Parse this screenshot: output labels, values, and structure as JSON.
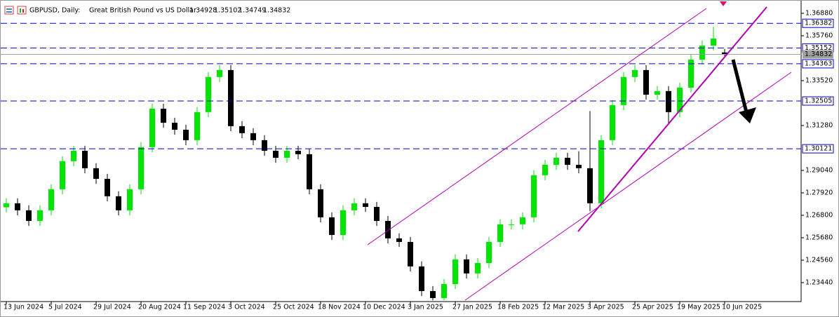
{
  "chart_data": {
    "type": "candlestick",
    "symbol": "GBPUSD, Daily:",
    "description": "Great British Pound vs US Dollar",
    "categories": [
      "13 Jun 2024",
      null,
      null,
      null,
      "5 Jul 2024",
      null,
      null,
      null,
      "29 Jul 2024",
      null,
      null,
      null,
      "20 Aug 2024",
      null,
      null,
      null,
      "11 Sep 2024",
      null,
      null,
      null,
      "3 Oct 2024",
      null,
      null,
      null,
      "25 Oct 2024",
      null,
      null,
      null,
      "18 Nov 2024",
      null,
      null,
      null,
      "10 Dec 2024",
      null,
      null,
      null,
      "3 Jan 2025",
      null,
      null,
      null,
      "27 Jan 2025",
      null,
      null,
      null,
      "18 Feb 2025",
      null,
      null,
      null,
      "12 Mar 2025",
      null,
      null,
      null,
      "3 Apr 2025",
      null,
      null,
      null,
      "25 Apr 2025",
      null,
      null,
      null,
      "19 May 2025",
      null,
      null,
      null,
      "10 Jun 2025"
    ],
    "open": [
      1.272,
      1.274,
      1.2705,
      1.2652,
      1.2705,
      1.281,
      1.295,
      1.3002,
      1.2915,
      1.2862,
      1.2775,
      1.2705,
      1.281,
      1.302,
      1.3212,
      1.3142,
      1.3107,
      1.3055,
      1.3195,
      1.337,
      1.3405,
      1.3125,
      1.309,
      1.3055,
      1.3002,
      1.2967,
      1.3002,
      1.2985,
      1.281,
      1.267,
      1.2582,
      1.2705,
      1.274,
      1.2722,
      1.2652,
      1.2565,
      1.2547,
      1.2425,
      1.2302,
      1.2267,
      1.2337,
      1.246,
      1.239,
      1.2442,
      1.2547,
      1.2635,
      1.2635,
      1.267,
      1.288,
      1.2932,
      1.2967,
      1.2932,
      1.2915,
      1.274,
      1.3055,
      1.323,
      1.337,
      1.3405,
      1.3282,
      1.33,
      1.3195,
      1.3317,
      1.3457,
      1.3527,
      1.34928
    ],
    "high": [
      1.2765,
      1.2765,
      1.273,
      1.273,
      1.2835,
      1.2975,
      1.3027,
      1.3027,
      1.294,
      1.2887,
      1.28,
      1.2835,
      1.3045,
      1.3237,
      1.3237,
      1.3167,
      1.3132,
      1.322,
      1.3395,
      1.343,
      1.343,
      1.315,
      1.3115,
      1.308,
      1.3027,
      1.3027,
      1.3027,
      1.301,
      1.2835,
      1.2695,
      1.273,
      1.2765,
      1.2765,
      1.2747,
      1.2677,
      1.259,
      1.2572,
      1.245,
      1.2327,
      1.2362,
      1.2485,
      1.2485,
      1.2467,
      1.2572,
      1.266,
      1.266,
      1.2695,
      1.2905,
      1.2957,
      1.2992,
      1.2992,
      1.3,
      1.32,
      1.308,
      1.3255,
      1.3395,
      1.343,
      1.343,
      1.3325,
      1.3325,
      1.3342,
      1.3482,
      1.3552,
      1.362,
      1.35102
    ],
    "low": [
      1.2695,
      1.268,
      1.2627,
      1.2627,
      1.268,
      1.2785,
      1.2925,
      1.289,
      1.2837,
      1.275,
      1.268,
      1.268,
      1.2785,
      1.2995,
      1.3117,
      1.3082,
      1.303,
      1.303,
      1.317,
      1.3345,
      1.31,
      1.3065,
      1.303,
      1.2977,
      1.2942,
      1.2942,
      1.296,
      1.2785,
      1.2645,
      1.2557,
      1.2557,
      1.268,
      1.2697,
      1.2627,
      1.254,
      1.2522,
      1.24,
      1.2277,
      1.2255,
      1.2255,
      1.2312,
      1.2365,
      1.2365,
      1.2417,
      1.2522,
      1.261,
      1.261,
      1.2645,
      1.2855,
      1.2907,
      1.2907,
      1.289,
      1.27,
      1.2715,
      1.303,
      1.3205,
      1.3345,
      1.3257,
      1.3257,
      1.314,
      1.317,
      1.3292,
      1.3432,
      1.3502,
      1.34749
    ],
    "close": [
      1.274,
      1.2705,
      1.2652,
      1.2705,
      1.281,
      1.295,
      1.3002,
      1.2915,
      1.2862,
      1.2775,
      1.2705,
      1.281,
      1.302,
      1.3212,
      1.3142,
      1.3107,
      1.3055,
      1.3195,
      1.337,
      1.3405,
      1.3125,
      1.309,
      1.3055,
      1.3002,
      1.2967,
      1.3002,
      1.2985,
      1.281,
      1.267,
      1.2582,
      1.2705,
      1.274,
      1.2722,
      1.2652,
      1.2565,
      1.2547,
      1.2425,
      1.2302,
      1.2267,
      1.2337,
      1.246,
      1.239,
      1.2442,
      1.2547,
      1.2635,
      1.2635,
      1.267,
      1.288,
      1.2932,
      1.2967,
      1.2932,
      1.2915,
      1.274,
      1.3055,
      1.323,
      1.337,
      1.3405,
      1.3282,
      1.33,
      1.3195,
      1.3317,
      1.3457,
      1.3527,
      1.3562,
      1.34832
    ],
    "up_color": "#00e600",
    "down_color": "#000000",
    "ylim": [
      1.2253,
      1.3737
    ],
    "yticks": [
      {
        "value": 1.3688,
        "label": "1.36880"
      },
      {
        "value": 1.3576,
        "label": "1.35760"
      },
      {
        "value": 1.3352,
        "label": "1.33520"
      },
      {
        "value": 1.3128,
        "label": "1.31280"
      },
      {
        "value": 1.2904,
        "label": "1.29040"
      },
      {
        "value": 1.2792,
        "label": "1.27920"
      },
      {
        "value": 1.268,
        "label": "1.26800"
      },
      {
        "value": 1.2568,
        "label": "1.25680"
      },
      {
        "value": 1.2456,
        "label": "1.24560"
      },
      {
        "value": 1.2344,
        "label": "1.23440"
      }
    ],
    "levels": [
      1.36382,
      1.35152,
      1.34363,
      1.32505,
      1.30121
    ],
    "level_color": "#0000cc"
  }
}
